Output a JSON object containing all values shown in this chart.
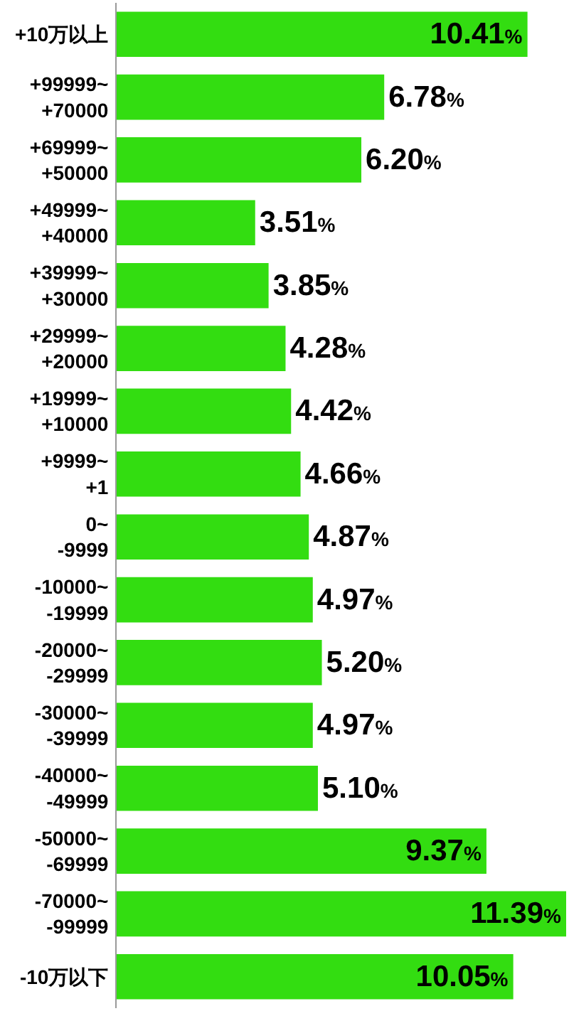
{
  "chart_data": {
    "type": "bar",
    "orientation": "horizontal",
    "categories": [
      "+10万以上",
      "+99999~\n+70000",
      "+69999~\n+50000",
      "+49999~\n+40000",
      "+39999~\n+30000",
      "+29999~\n+20000",
      "+19999~\n+10000",
      "+9999~\n+1",
      "0~\n-9999",
      "-10000~\n-19999",
      "-20000~\n-29999",
      "-30000~\n-39999",
      "-40000~\n-49999",
      "-50000~\n-69999",
      "-70000~\n-99999",
      "-10万以下"
    ],
    "values": [
      10.41,
      6.78,
      6.2,
      3.51,
      3.85,
      4.28,
      4.42,
      4.66,
      4.87,
      4.97,
      5.2,
      4.97,
      5.1,
      9.37,
      11.39,
      10.05
    ],
    "value_labels": [
      "10.41%",
      "6.78%",
      "6.20%",
      "3.51%",
      "3.85%",
      "4.28%",
      "4.42%",
      "4.66%",
      "4.87%",
      "4.97%",
      "5.20%",
      "4.97%",
      "5.10%",
      "9.37%",
      "11.39%",
      "10.05%"
    ],
    "color": "#33dd11",
    "tick_labels": "y"
  }
}
